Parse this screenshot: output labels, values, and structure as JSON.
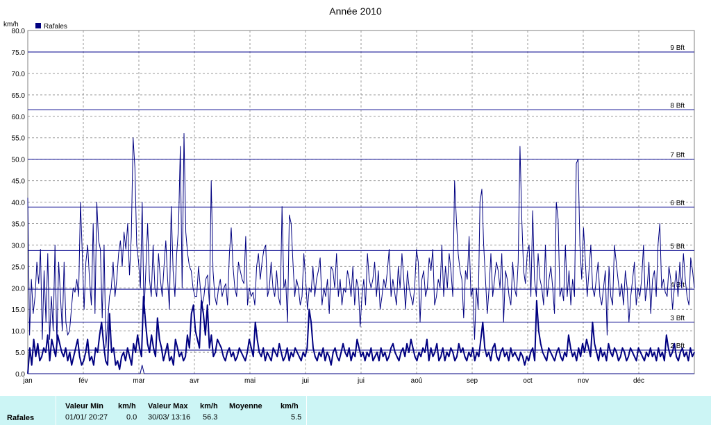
{
  "chart_data": {
    "type": "line",
    "title": "Année 2010",
    "y_unit": "km/h",
    "ylim": [
      0,
      80
    ],
    "y_ticks": [
      "0.0",
      "5.0",
      "10.0",
      "15.0",
      "20.0",
      "25.0",
      "30.0",
      "35.0",
      "40.0",
      "45.0",
      "50.0",
      "55.0",
      "60.0",
      "65.0",
      "70.0",
      "75.0",
      "80.0"
    ],
    "x_ticks": [
      "jan",
      "fév",
      "mar",
      "avr",
      "mai",
      "jui",
      "jui",
      "aoû",
      "sep",
      "oct",
      "nov",
      "déc"
    ],
    "legend": {
      "label": "Rafales",
      "position": "top-left"
    },
    "beaufort_lines": [
      {
        "label": "2 Bft",
        "value": 5.5
      },
      {
        "label": "3 Bft",
        "value": 12
      },
      {
        "label": "4 Bft",
        "value": 19.7
      },
      {
        "label": "5 Bft",
        "value": 28.7
      },
      {
        "label": "6 Bft",
        "value": 38.8
      },
      {
        "label": "7 Bft",
        "value": 50
      },
      {
        "label": "8 Bft",
        "value": 61.5
      },
      {
        "label": "9 Bft",
        "value": 75
      }
    ],
    "grid": true,
    "series": [
      {
        "name": "Rafales",
        "kind": "daily-gust",
        "values": [
          41,
          9,
          22,
          14,
          18,
          26,
          21,
          29,
          8,
          24,
          12,
          28,
          8,
          18,
          10,
          30,
          7,
          26,
          18,
          10,
          26,
          12,
          9,
          10,
          15,
          20,
          19,
          22,
          18,
          40,
          28,
          15,
          26,
          30,
          22,
          16,
          35,
          14,
          40,
          31,
          29,
          13,
          30,
          6,
          12,
          18,
          20,
          26,
          18,
          22,
          28,
          31,
          25,
          33,
          29,
          35,
          23,
          32,
          55,
          48,
          30,
          26,
          20,
          40,
          14,
          24,
          35,
          22,
          18,
          30,
          20,
          18,
          28,
          22,
          18,
          25,
          31,
          22,
          15,
          39,
          24,
          18,
          28,
          34,
          53,
          20,
          56,
          33,
          28,
          25,
          24,
          20,
          18,
          18,
          25,
          20,
          16,
          18,
          22,
          23,
          16,
          45,
          24,
          18,
          16,
          20,
          22,
          18,
          20,
          21,
          16,
          28,
          34,
          25,
          20,
          18,
          26,
          24,
          22,
          21,
          32,
          16,
          20,
          18,
          19,
          16,
          25,
          28,
          22,
          26,
          29,
          30,
          18,
          20,
          26,
          20,
          18,
          24,
          18,
          16,
          39,
          20,
          22,
          12,
          37,
          35,
          26,
          18,
          22,
          20,
          16,
          18,
          28,
          22,
          15,
          20,
          19,
          25,
          18,
          22,
          24,
          27,
          16,
          20,
          18,
          22,
          14,
          25,
          24,
          20,
          28,
          18,
          22,
          16,
          20,
          19,
          24,
          22,
          18,
          25,
          16,
          22,
          20,
          11,
          18,
          22,
          16,
          28,
          22,
          20,
          22,
          26,
          18,
          24,
          15,
          18,
          22,
          20,
          24,
          29,
          18,
          22,
          19,
          16,
          25,
          20,
          28,
          22,
          15,
          24,
          20,
          18,
          16,
          20,
          29,
          26,
          12,
          22,
          24,
          18,
          20,
          27,
          24,
          29,
          16,
          18,
          22,
          20,
          30,
          18,
          25,
          20,
          28,
          24,
          18,
          45,
          36,
          28,
          24,
          22,
          13,
          24,
          22,
          32,
          18,
          20,
          8,
          20,
          15,
          40,
          43,
          30,
          22,
          14,
          20,
          28,
          18,
          22,
          26,
          24,
          20,
          28,
          12,
          24,
          22,
          18,
          16,
          26,
          20,
          18,
          26,
          53,
          36,
          24,
          21,
          28,
          30,
          18,
          38,
          22,
          18,
          28,
          22,
          20,
          16,
          30,
          18,
          22,
          25,
          20,
          14,
          40,
          36,
          18,
          20,
          17,
          30,
          18,
          24,
          16,
          22,
          18,
          49,
          50,
          30,
          22,
          34,
          26,
          18,
          24,
          30,
          20,
          18,
          22,
          26,
          18,
          16,
          20,
          24,
          9,
          25,
          18,
          16,
          30,
          26,
          22,
          18,
          21,
          16,
          24,
          20,
          12,
          18,
          22,
          26,
          16,
          20,
          18,
          22,
          30,
          17,
          20,
          26,
          14,
          22,
          24,
          18,
          30,
          35,
          20,
          22,
          19,
          18,
          25,
          22,
          15,
          20,
          24,
          18,
          26,
          20,
          28,
          22,
          18,
          16,
          27,
          24,
          20
        ]
      },
      {
        "name": "",
        "kind": "daily-mean",
        "values": [
          0,
          6,
          2,
          8,
          4,
          7,
          3,
          4,
          6,
          5,
          9,
          3,
          8,
          6,
          4,
          9,
          7,
          5,
          4,
          6,
          3,
          5,
          2,
          4,
          6,
          8,
          4,
          2,
          3,
          5,
          8,
          3,
          4,
          2,
          6,
          5,
          9,
          12,
          7,
          3,
          2,
          14,
          5,
          6,
          2,
          3,
          1,
          4,
          5,
          3,
          6,
          4,
          2,
          7,
          5,
          9,
          6,
          4,
          18,
          12,
          7,
          5,
          9,
          6,
          4,
          13,
          8,
          6,
          3,
          5,
          7,
          3,
          4,
          2,
          8,
          6,
          4,
          5,
          3,
          4,
          9,
          6,
          14,
          16,
          10,
          8,
          6,
          17,
          14,
          9,
          16,
          6,
          9,
          4,
          5,
          8,
          7,
          6,
          4,
          3,
          5,
          6,
          4,
          5,
          3,
          4,
          6,
          5,
          4,
          3,
          5,
          8,
          6,
          4,
          12,
          8,
          5,
          4,
          6,
          3,
          5,
          4,
          3,
          6,
          5,
          4,
          7,
          5,
          3,
          4,
          6,
          3,
          5,
          4,
          6,
          5,
          4,
          3,
          5,
          4,
          6,
          15,
          12,
          6,
          4,
          3,
          5,
          4,
          6,
          3,
          5,
          4,
          2,
          5,
          6,
          4,
          3,
          5,
          7,
          5,
          4,
          6,
          3,
          5,
          4,
          8,
          6,
          4,
          5,
          3,
          5,
          4,
          6,
          3,
          4,
          5,
          3,
          6,
          4,
          5,
          3,
          4,
          6,
          7,
          5,
          4,
          3,
          5,
          6,
          4,
          7,
          5,
          8,
          6,
          4,
          3,
          5,
          4,
          6,
          5,
          8,
          3,
          6,
          4,
          5,
          7,
          3,
          4,
          6,
          3,
          5,
          4,
          6,
          5,
          3,
          4,
          7,
          5,
          6,
          4,
          3,
          5,
          4,
          6,
          3,
          5,
          4,
          8,
          12,
          6,
          4,
          5,
          3,
          6,
          7,
          4,
          3,
          5,
          6,
          4,
          5,
          3,
          6,
          4,
          5,
          4,
          3,
          5,
          4,
          2,
          4,
          3,
          5,
          6,
          3,
          17,
          10,
          7,
          5,
          4,
          3,
          6,
          5,
          4,
          3,
          5,
          6,
          4,
          3,
          5,
          4,
          9,
          6,
          4,
          5,
          3,
          6,
          4,
          7,
          5,
          8,
          6,
          4,
          12,
          7,
          5,
          3,
          6,
          4,
          5,
          3,
          7,
          5,
          4,
          6,
          5,
          3,
          4,
          6,
          5,
          3,
          4,
          6,
          5,
          4,
          3,
          6,
          5,
          4,
          3,
          5,
          4,
          6,
          4,
          5,
          3,
          6,
          4,
          5,
          3,
          9,
          6,
          4,
          5,
          7,
          4,
          3,
          5,
          6,
          4,
          5,
          3,
          6,
          4,
          5
        ]
      },
      {
        "name": "",
        "kind": "daily-min",
        "values": [
          0,
          0,
          0,
          0,
          0,
          0,
          0,
          0,
          0,
          0,
          0,
          0,
          0,
          0,
          0,
          0,
          0,
          0,
          0,
          0,
          0,
          0,
          0,
          0,
          0,
          0,
          0,
          0,
          0,
          0,
          0,
          0,
          0,
          0,
          0,
          0,
          0,
          0,
          0,
          0,
          0,
          0,
          0,
          0,
          0,
          0,
          0,
          0,
          0,
          0,
          0,
          0,
          0,
          0,
          0,
          0,
          0,
          0,
          2,
          0,
          0,
          0,
          0,
          0,
          0,
          0,
          0,
          0,
          0,
          0,
          0,
          0,
          0,
          0,
          0,
          0,
          0,
          0,
          0,
          0,
          0,
          0,
          0,
          0,
          0,
          0,
          0,
          0,
          0,
          0,
          0,
          0,
          0,
          0,
          0,
          0,
          0,
          0,
          0,
          0,
          0,
          0,
          0,
          0,
          0,
          0,
          0,
          0,
          0,
          0,
          0,
          0,
          0,
          0,
          0,
          0,
          0,
          0,
          0,
          0,
          0,
          0,
          0,
          0,
          0,
          0,
          0,
          0,
          0,
          0,
          0,
          0,
          0,
          0,
          0,
          0,
          0,
          0,
          0,
          0,
          0,
          0,
          0,
          0,
          0,
          0,
          0,
          0,
          0,
          0,
          0,
          0,
          0,
          0,
          0,
          0,
          0,
          0,
          0,
          0,
          0,
          0,
          0,
          0,
          0,
          0,
          0,
          0,
          0,
          0,
          0,
          0,
          0,
          0,
          0,
          0,
          0,
          0,
          0,
          0,
          0,
          0,
          0,
          0,
          0,
          0,
          0,
          0,
          0,
          0,
          0,
          0,
          0,
          0,
          0,
          0,
          0,
          0,
          0,
          0,
          0,
          0,
          0,
          0,
          0,
          0,
          0,
          0,
          0,
          0,
          0,
          0,
          0,
          0,
          0,
          0,
          0,
          0,
          0,
          0,
          0,
          0,
          0,
          0,
          0,
          0,
          0,
          0,
          0,
          0,
          0,
          0,
          0,
          0,
          0,
          0,
          0,
          0,
          0,
          0,
          0,
          0,
          0,
          0,
          0,
          0,
          0,
          0,
          0,
          0,
          0,
          0,
          0,
          0,
          0,
          0,
          0,
          0,
          0,
          0,
          0,
          0,
          0,
          0,
          0,
          0,
          0,
          0,
          0,
          0,
          0,
          0,
          0,
          0,
          0,
          0,
          0,
          0,
          0,
          0,
          0,
          0,
          0,
          0,
          0,
          0,
          0,
          0,
          0,
          0,
          0,
          0,
          0,
          0,
          0,
          0,
          0,
          0,
          0,
          0,
          0,
          0,
          0,
          0,
          0,
          0,
          0,
          0,
          0,
          0,
          0,
          0,
          0,
          0,
          0,
          0,
          0,
          0,
          0,
          0,
          0,
          0,
          0,
          0,
          0,
          0,
          0,
          0,
          0,
          0,
          0,
          0,
          0,
          0,
          0,
          0,
          0,
          0,
          0
        ]
      }
    ]
  },
  "stats": {
    "row_label": "Rafales",
    "min_header": "Valeur Min",
    "max_header": "Valeur Max",
    "mean_header": "Moyenne",
    "unit": "km/h",
    "min_time": "01/01/  20:27",
    "min_value": "0.0",
    "max_time": "30/03/  13:16",
    "max_value": "56.3",
    "mean_value": "5.5"
  },
  "colors": {
    "series": "#000080",
    "grid": "#888888",
    "beaufort": "#00008b",
    "stats_bg": "#ccf5f5"
  }
}
